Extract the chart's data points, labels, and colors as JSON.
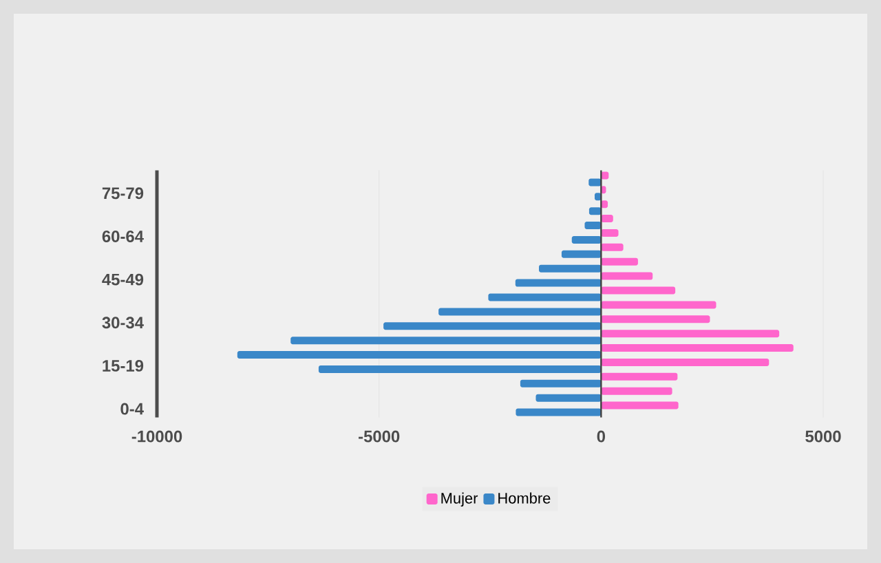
{
  "chart_data": {
    "type": "bar",
    "orientation": "horizontal",
    "categories": [
      null,
      "75-79",
      null,
      null,
      "60-64",
      null,
      null,
      "45-49",
      null,
      null,
      "30-34",
      null,
      null,
      "15-19",
      null,
      null,
      "0-4"
    ],
    "series": [
      {
        "name": "Mujer",
        "color": "#ff66cc",
        "values": [
          170,
          110,
          150,
          270,
          390,
          500,
          830,
          1160,
          1670,
          2590,
          2450,
          4010,
          4330,
          3780,
          1720,
          1600,
          1740
        ]
      },
      {
        "name": "Hombre",
        "color": "#3a87c8",
        "values": [
          -280,
          -145,
          -270,
          -370,
          -660,
          -890,
          -1400,
          -1930,
          -2540,
          -3660,
          -4900,
          -6990,
          -8190,
          -6360,
          -1820,
          -1470,
          -1920
        ]
      }
    ],
    "xlim": [
      -10000,
      5000
    ],
    "xticks": [
      -10000,
      -5000,
      0,
      5000
    ],
    "grid": "x",
    "legend": "bottom",
    "ref_lines": [
      {
        "axis": "x",
        "value": 0,
        "color": "#404040"
      }
    ]
  }
}
